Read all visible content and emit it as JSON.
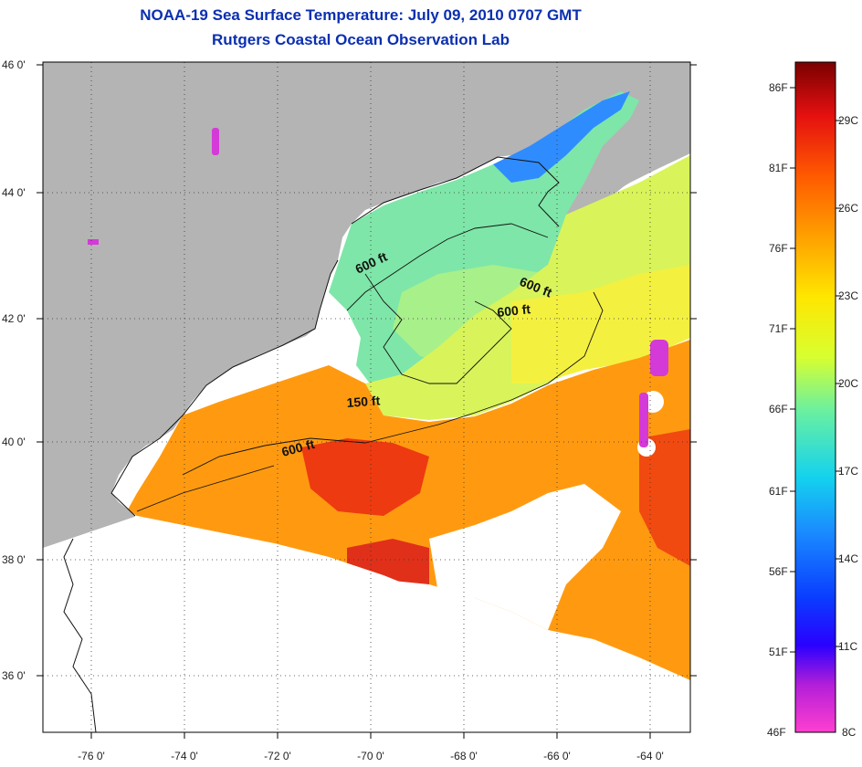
{
  "title": "NOAA-19 Sea Surface Temperature:  July 09, 2010 0707 GMT",
  "subtitle": "Rutgers Coastal Ocean Observation Lab",
  "latitude_ticks": [
    "46 0'",
    "44 0'",
    "42 0'",
    "40 0'",
    "38 0'",
    "36 0'"
  ],
  "longitude_ticks": [
    "-76 0'",
    "-74 0'",
    "-72 0'",
    "-70 0'",
    "-68 0'",
    "-66 0'",
    "-64 0'"
  ],
  "contour_labels": [
    "600 ft",
    "600 ft",
    "600 ft",
    "150 ft",
    "600 ft"
  ],
  "colorbar": {
    "fahrenheit_labels": [
      "86F",
      "81F",
      "76F",
      "71F",
      "66F",
      "61F",
      "56F",
      "51F",
      "46F"
    ],
    "celsius_labels": [
      "29C",
      "26C",
      "23C",
      "20C",
      "17C",
      "14C",
      "11C",
      "8C"
    ]
  },
  "colors": {
    "land": "#b4b4b4",
    "no_data": "#ffffff",
    "title": "#0b2fb0"
  }
}
